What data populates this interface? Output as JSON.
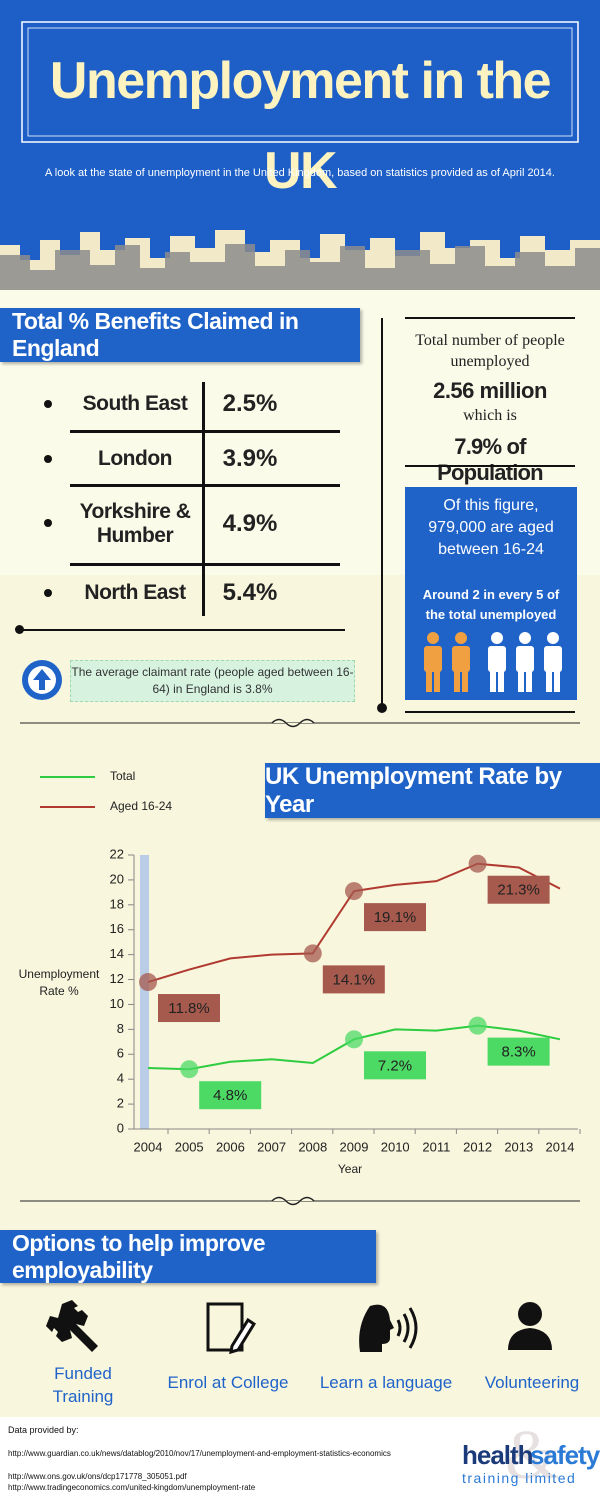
{
  "header": {
    "title": "Unemployment in the UK",
    "subtitle": "A look at the state of unemployment in the United Kingdom, based on statistics provided as of April 2014."
  },
  "benefits": {
    "title": "Total % Benefits Claimed in England",
    "rows": [
      {
        "region": "South East",
        "rate": "2.5%"
      },
      {
        "region": "London",
        "rate": "3.9%"
      },
      {
        "region": "Yorkshire & Humber",
        "rate": "4.9%"
      },
      {
        "region": "North East",
        "rate": "5.4%"
      }
    ],
    "note": "The average claimant rate (people aged between 16-64) in England is 3.8%"
  },
  "unemployed": {
    "lines": [
      "Total number of people unemployed",
      "2.56 million",
      "which is",
      "7.9% of Population"
    ],
    "young": "Of this figure, 979,000 are aged between 16-24",
    "ratio": "Around 2 in every 5 of the total unemployed"
  },
  "chart_data": {
    "type": "line",
    "title": "UK Unemployment Rate by Year",
    "x_label": "Year",
    "y_label": "Unemployment Rate %",
    "x": [
      2004,
      2005,
      2006,
      2007,
      2008,
      2009,
      2010,
      2011,
      2012,
      2013,
      2014
    ],
    "xlim": [
      2004,
      2014
    ],
    "xticks": [
      2004,
      2005,
      2006,
      2007,
      2008,
      2009,
      2010,
      2011,
      2012,
      2013,
      2014
    ],
    "ylim": [
      0,
      22
    ],
    "yticks": [
      0,
      2,
      4,
      6,
      8,
      10,
      12,
      14,
      16,
      18,
      20,
      22
    ],
    "series": [
      {
        "name": "Total",
        "color": "#2ecc40",
        "label_color": "#4cd964",
        "values": [
          4.9,
          4.8,
          5.4,
          5.6,
          5.3,
          7.2,
          8.0,
          7.9,
          8.3,
          7.9,
          7.2
        ],
        "value_labels": [
          null,
          "4.8%",
          null,
          null,
          null,
          "7.2%",
          null,
          null,
          "8.3%",
          null,
          null
        ]
      },
      {
        "name": "Aged 16-24",
        "color": "#b03a30",
        "label_color": "#a65a4e",
        "values": [
          11.8,
          12.8,
          13.7,
          14.0,
          14.1,
          19.1,
          19.6,
          19.9,
          21.3,
          21.0,
          19.3
        ],
        "value_labels": [
          "11.8%",
          null,
          null,
          null,
          "14.1%",
          "19.1%",
          null,
          null,
          "21.3%",
          null,
          null
        ]
      }
    ]
  },
  "options": {
    "title": "Options to help improve employability",
    "items": [
      "Funded Training",
      "Enrol at College",
      "Learn a language",
      "Volunteering"
    ]
  },
  "footer": {
    "heading": "Data provided by:",
    "sources": [
      "http://www.guardian.co.uk/news/datablog/2010/nov/17/unemployment-and-employment-statistics-economics",
      "http://www.ons.gov.uk/ons/dcp171778_305051.pdf",
      "http://www.tradingeconomics.com/united-kingdom/unemployment-rate"
    ],
    "logo": {
      "health": "health",
      "amp": "&",
      "safety": "safety",
      "sub": "training limited"
    }
  }
}
